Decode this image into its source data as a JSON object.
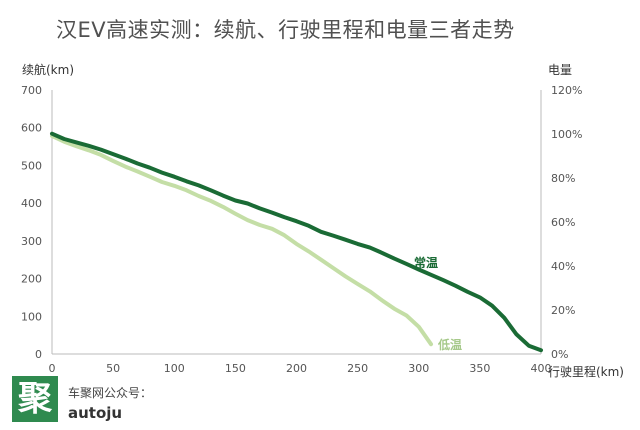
{
  "title": "汉EV高速实测：续航、行驶里程和电量三者走势",
  "footer": {
    "logo_char": "聚",
    "wechat_label": "车聚网公众号：",
    "account": "autoju"
  },
  "colors": {
    "normal": "#1a6b35",
    "low": "#c4dea6",
    "axis": "#bbbbbb"
  },
  "chart_data": {
    "type": "line",
    "title": "汉EV高速实测：续航、行驶里程和电量三者走势",
    "xlabel": "行驶里程(km)",
    "ylabel": "续航(km)",
    "y2label": "电量",
    "xlim": [
      0,
      400
    ],
    "ylim": [
      0,
      700
    ],
    "y2lim": [
      0,
      1.2
    ],
    "x_ticks": [
      "0",
      "50",
      "100",
      "150",
      "200",
      "250",
      "300",
      "350",
      "400"
    ],
    "y_ticks": [
      "0",
      "100",
      "200",
      "300",
      "400",
      "500",
      "600",
      "700"
    ],
    "y2_ticks": [
      "0%",
      "20%",
      "40%",
      "60%",
      "80%",
      "100%",
      "120%"
    ],
    "grid": false,
    "series": [
      {
        "name": "常温",
        "x": [
          0,
          10,
          20,
          30,
          40,
          50,
          60,
          70,
          80,
          90,
          100,
          110,
          120,
          130,
          140,
          150,
          160,
          170,
          180,
          190,
          200,
          210,
          220,
          230,
          240,
          250,
          260,
          270,
          280,
          290,
          300,
          310,
          320,
          330,
          340,
          350,
          360,
          370,
          380,
          390,
          400
        ],
        "values": [
          584,
          570,
          561,
          552,
          542,
          530,
          518,
          505,
          494,
          481,
          470,
          458,
          447,
          434,
          420,
          407,
          399,
          386,
          375,
          363,
          352,
          340,
          324,
          314,
          303,
          292,
          282,
          268,
          253,
          239,
          224,
          210,
          196,
          181,
          165,
          150,
          128,
          96,
          52,
          22,
          10
        ]
      },
      {
        "name": "低温",
        "x": [
          0,
          10,
          20,
          30,
          40,
          50,
          60,
          70,
          80,
          90,
          100,
          110,
          120,
          130,
          140,
          150,
          160,
          170,
          180,
          190,
          200,
          210,
          220,
          230,
          240,
          250,
          260,
          270,
          280,
          290,
          300,
          310
        ],
        "values": [
          578,
          563,
          551,
          540,
          528,
          512,
          497,
          484,
          470,
          456,
          446,
          434,
          419,
          406,
          390,
          372,
          355,
          342,
          332,
          315,
          292,
          272,
          250,
          228,
          206,
          186,
          166,
          142,
          120,
          102,
          72,
          26
        ]
      }
    ]
  }
}
